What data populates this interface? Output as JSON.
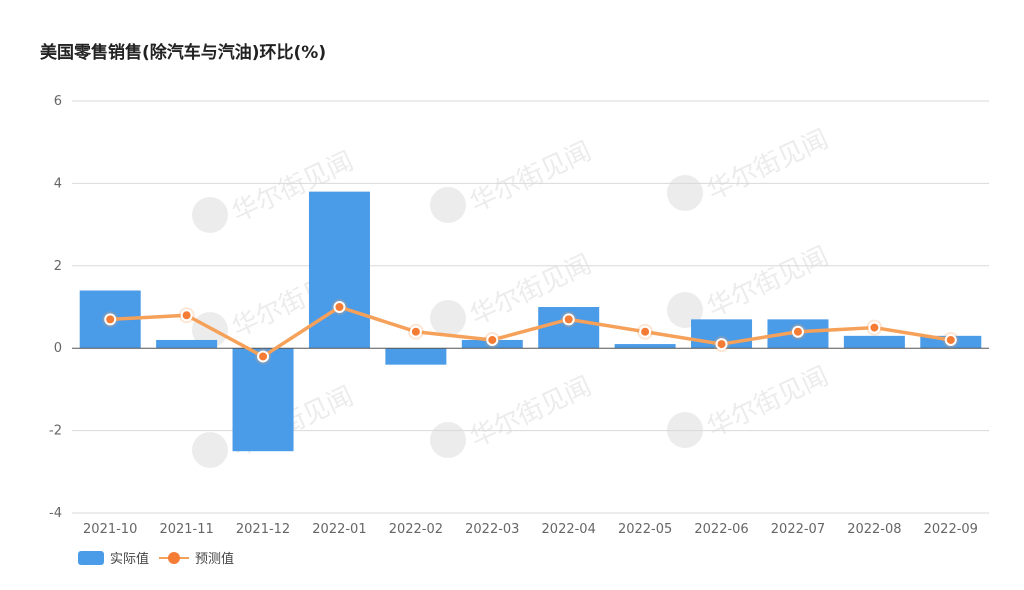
{
  "chart_data": {
    "type": "bar",
    "title": "美国零售销售(除汽车与汽油)环比(%)",
    "categories": [
      "2021-10",
      "2021-11",
      "2021-12",
      "2022-01",
      "2022-02",
      "2022-03",
      "2022-04",
      "2022-05",
      "2022-06",
      "2022-07",
      "2022-08",
      "2022-09"
    ],
    "series": [
      {
        "name": "实际值",
        "type": "bar",
        "color": "#4a9be8",
        "values": [
          1.4,
          0.2,
          -2.5,
          3.8,
          -0.4,
          0.2,
          1.0,
          0.1,
          0.7,
          0.7,
          0.3,
          0.3
        ]
      },
      {
        "name": "预测值",
        "type": "line",
        "color": "#f5a15a",
        "marker_color": "#f57c35",
        "values": [
          0.7,
          0.8,
          -0.2,
          1.0,
          0.4,
          0.2,
          0.7,
          0.4,
          0.1,
          0.4,
          0.5,
          0.2
        ]
      }
    ],
    "ylim": [
      -4,
      6
    ],
    "yticks": [
      "6",
      "4",
      "2",
      "0",
      "-2",
      "-4"
    ],
    "xlabel": "",
    "ylabel": "",
    "grid": true,
    "legend": "bottom-left",
    "watermark": "华尔街见闻"
  }
}
